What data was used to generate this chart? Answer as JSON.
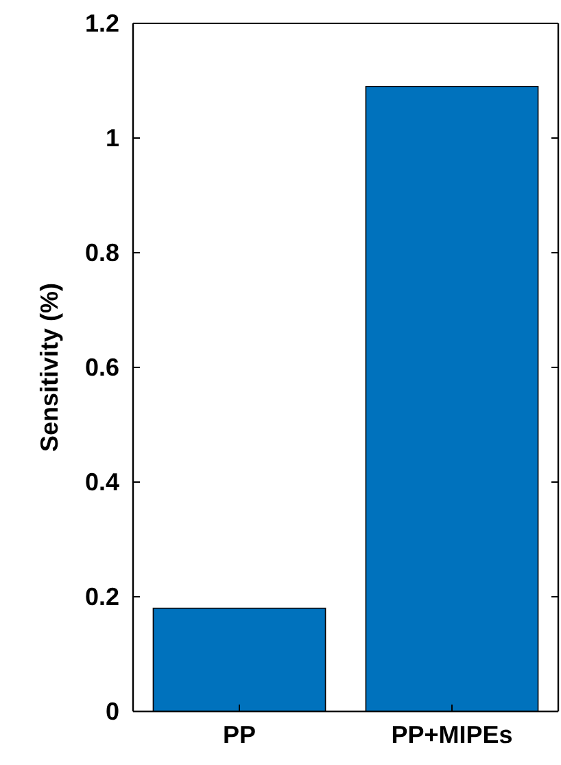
{
  "chart_data": {
    "type": "bar",
    "ylabel": "Sensitivity (%)",
    "categories": [
      "PP",
      "PP+MIPEs"
    ],
    "values": [
      0.18,
      1.09
    ],
    "color": "#0072bd",
    "ylim": [
      0,
      1.2
    ],
    "yticks": [
      0,
      0.2,
      0.4,
      0.6,
      0.8,
      1,
      1.2
    ],
    "grid": false
  }
}
